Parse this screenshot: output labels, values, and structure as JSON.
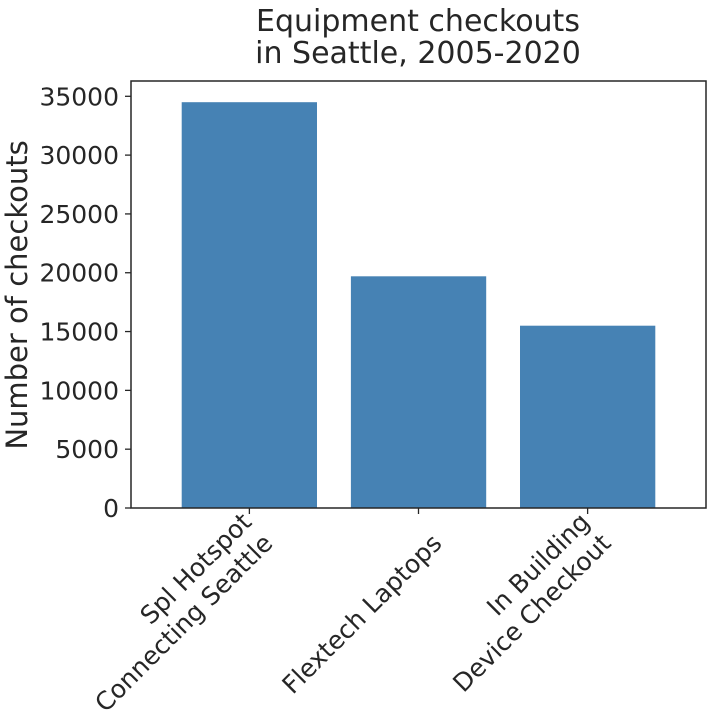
{
  "chart_data": {
    "type": "bar",
    "title": [
      "Equipment checkouts",
      "in Seattle, 2005-2020"
    ],
    "xlabel": "",
    "ylabel": "Number of checkouts",
    "categories": [
      [
        "Spl Hotspot",
        "Connecting Seattle"
      ],
      [
        "Flextech Laptops"
      ],
      [
        "In Building",
        "Device Checkout"
      ]
    ],
    "values": [
      34500,
      19700,
      15500
    ],
    "ylim": [
      0,
      36300
    ],
    "yticks": [
      0,
      5000,
      10000,
      15000,
      20000,
      25000,
      30000,
      35000
    ],
    "bar_color": "#4682b4",
    "grid": false,
    "legend": "none"
  }
}
